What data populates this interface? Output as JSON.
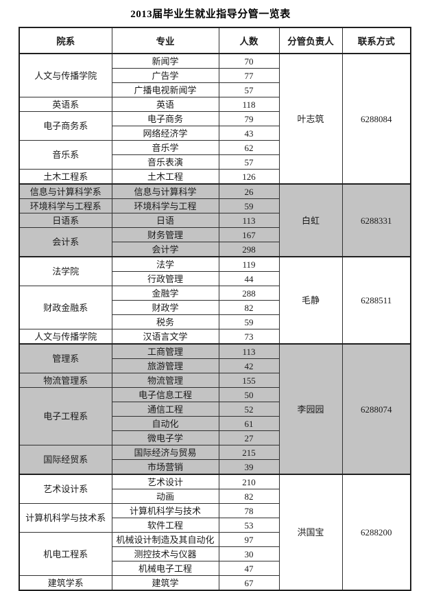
{
  "title": "2013届毕业生就业指导分管一览表",
  "colors": {
    "shaded_section_bg": "#c3c3c3",
    "border": "#1f1f1f",
    "background": "#ffffff"
  },
  "table": {
    "headers": [
      "院系",
      "专业",
      "人数",
      "分管负责人",
      "联系方式"
    ],
    "sections": [
      {
        "manager": "叶志筑",
        "phone": "6288084",
        "shaded": false,
        "departments": [
          {
            "name": "人文与传播学院",
            "majors": [
              {
                "major": "新闻学",
                "count": "70"
              },
              {
                "major": "广告学",
                "count": "77"
              },
              {
                "major": "广播电视新闻学",
                "count": "57"
              }
            ]
          },
          {
            "name": "英语系",
            "majors": [
              {
                "major": "英语",
                "count": "118"
              }
            ]
          },
          {
            "name": "电子商务系",
            "majors": [
              {
                "major": "电子商务",
                "count": "79"
              },
              {
                "major": "网络经济学",
                "count": "43"
              }
            ]
          },
          {
            "name": "音乐系",
            "majors": [
              {
                "major": "音乐学",
                "count": "62"
              },
              {
                "major": "音乐表演",
                "count": "57"
              }
            ]
          },
          {
            "name": "土木工程系",
            "majors": [
              {
                "major": "土木工程",
                "count": "126"
              }
            ]
          }
        ]
      },
      {
        "manager": "白虹",
        "phone": "6288331",
        "shaded": true,
        "departments": [
          {
            "name": "信息与计算科学系",
            "majors": [
              {
                "major": "信息与计算科学",
                "count": "26"
              }
            ]
          },
          {
            "name": "环境科学与工程系",
            "majors": [
              {
                "major": "环境科学与工程",
                "count": "59"
              }
            ]
          },
          {
            "name": "日语系",
            "majors": [
              {
                "major": "日语",
                "count": "113"
              }
            ]
          },
          {
            "name": "会计系",
            "majors": [
              {
                "major": "财务管理",
                "count": "167"
              },
              {
                "major": "会计学",
                "count": "298"
              }
            ]
          }
        ]
      },
      {
        "manager": "毛静",
        "phone": "6288511",
        "shaded": false,
        "departments": [
          {
            "name": "法学院",
            "majors": [
              {
                "major": "法学",
                "count": "119"
              },
              {
                "major": "行政管理",
                "count": "44"
              }
            ]
          },
          {
            "name": "财政金融系",
            "majors": [
              {
                "major": "金融学",
                "count": "288"
              },
              {
                "major": "财政学",
                "count": "82"
              },
              {
                "major": "税务",
                "count": "59"
              }
            ]
          },
          {
            "name": "人文与传播学院",
            "majors": [
              {
                "major": "汉语言文学",
                "count": "73"
              }
            ]
          }
        ]
      },
      {
        "manager": "李园园",
        "phone": "6288074",
        "shaded": true,
        "departments": [
          {
            "name": "管理系",
            "majors": [
              {
                "major": "工商管理",
                "count": "113"
              },
              {
                "major": "旅游管理",
                "count": "42"
              }
            ]
          },
          {
            "name": "物流管理系",
            "majors": [
              {
                "major": "物流管理",
                "count": "155"
              }
            ]
          },
          {
            "name": "电子工程系",
            "majors": [
              {
                "major": "电子信息工程",
                "count": "50"
              },
              {
                "major": "通信工程",
                "count": "52"
              },
              {
                "major": "自动化",
                "count": "61"
              },
              {
                "major": "微电子学",
                "count": "27"
              }
            ]
          },
          {
            "name": "国际经贸系",
            "majors": [
              {
                "major": "国际经济与贸易",
                "count": "215"
              },
              {
                "major": "市场营销",
                "count": "39"
              }
            ]
          }
        ]
      },
      {
        "manager": "洪国宝",
        "phone": "6288200",
        "shaded": false,
        "departments": [
          {
            "name": "艺术设计系",
            "majors": [
              {
                "major": "艺术设计",
                "count": "210"
              },
              {
                "major": "动画",
                "count": "82"
              }
            ]
          },
          {
            "name": "计算机科学与技术系",
            "majors": [
              {
                "major": "计算机科学与技术",
                "count": "78"
              },
              {
                "major": "软件工程",
                "count": "53"
              }
            ]
          },
          {
            "name": "机电工程系",
            "majors": [
              {
                "major": "机械设计制造及其自动化",
                "count": "97"
              },
              {
                "major": "测控技术与仪器",
                "count": "30"
              },
              {
                "major": "机械电子工程",
                "count": "47"
              }
            ]
          },
          {
            "name": "建筑学系",
            "majors": [
              {
                "major": "建筑学",
                "count": "67"
              }
            ]
          }
        ]
      }
    ]
  }
}
